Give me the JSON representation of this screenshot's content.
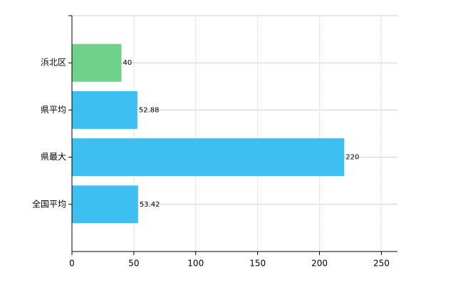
{
  "chart_data": {
    "type": "hbar",
    "categories": [
      "浜北区",
      "県平均",
      "県最大",
      "全国平均"
    ],
    "values": [
      40,
      52.88,
      220,
      53.42
    ],
    "colors": [
      "#6fd18a",
      "#3ebff2",
      "#3ebff2",
      "#3ebff2"
    ],
    "xlim": [
      0,
      263
    ],
    "xticks": [
      0,
      50,
      100,
      150,
      200,
      250
    ],
    "grid": true
  }
}
